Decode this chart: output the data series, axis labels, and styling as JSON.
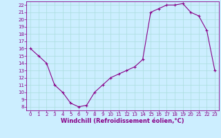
{
  "x": [
    0,
    1,
    2,
    3,
    4,
    5,
    6,
    7,
    8,
    9,
    10,
    11,
    12,
    13,
    14,
    15,
    16,
    17,
    18,
    19,
    20,
    21,
    22,
    23
  ],
  "y": [
    16,
    15,
    14,
    11,
    10,
    8.5,
    8,
    8.2,
    10,
    11,
    12,
    12.5,
    13,
    13.5,
    14.5,
    21,
    21.5,
    22,
    22,
    22.2,
    21,
    20.5,
    18.5,
    13
  ],
  "line_color": "#880088",
  "marker": "P",
  "marker_size": 2.5,
  "background_color": "#cceeff",
  "grid_color": "#aadddd",
  "xlabel": "Windchill (Refroidissement éolien,°C)",
  "xlabel_fontsize": 6.0,
  "xlim": [
    -0.5,
    23.5
  ],
  "ylim": [
    7.5,
    22.5
  ],
  "yticks": [
    8,
    9,
    10,
    11,
    12,
    13,
    14,
    15,
    16,
    17,
    18,
    19,
    20,
    21,
    22
  ],
  "xticks": [
    0,
    1,
    2,
    3,
    4,
    5,
    6,
    7,
    8,
    9,
    10,
    11,
    12,
    13,
    14,
    15,
    16,
    17,
    18,
    19,
    20,
    21,
    22,
    23
  ],
  "tick_fontsize": 5.0,
  "line_width": 0.8
}
